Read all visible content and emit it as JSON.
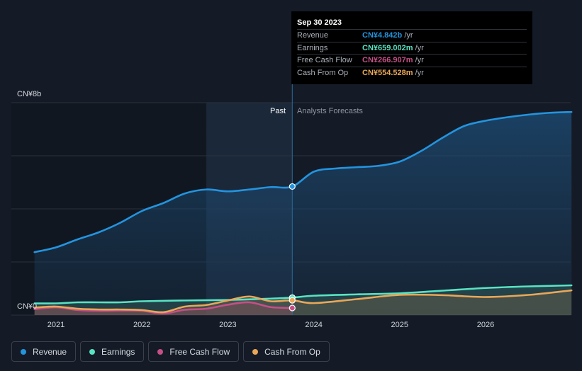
{
  "chart_data": {
    "type": "line",
    "title": "",
    "y_unit_labels": {
      "top": "CN¥8b",
      "bottom": "CN¥0"
    },
    "ylim": [
      0,
      8
    ],
    "xlim": [
      2020.6,
      2027.0
    ],
    "x_ticks": [
      {
        "label": "2021",
        "value": 2021
      },
      {
        "label": "2022",
        "value": 2022
      },
      {
        "label": "2023",
        "value": 2023
      },
      {
        "label": "2024",
        "value": 2024
      },
      {
        "label": "2025",
        "value": 2025
      },
      {
        "label": "2026",
        "value": 2026
      }
    ],
    "past_label": "Past",
    "forecast_label": "Analysts Forecasts",
    "divider_x": 2023.75,
    "shade_start_x": 2022.75,
    "series": [
      {
        "name": "Revenue",
        "color": "#2394df",
        "points": [
          [
            2020.75,
            2.37
          ],
          [
            2021.0,
            2.55
          ],
          [
            2021.25,
            2.85
          ],
          [
            2021.5,
            3.12
          ],
          [
            2021.75,
            3.48
          ],
          [
            2022.0,
            3.92
          ],
          [
            2022.25,
            4.22
          ],
          [
            2022.5,
            4.58
          ],
          [
            2022.75,
            4.73
          ],
          [
            2023.0,
            4.66
          ],
          [
            2023.25,
            4.73
          ],
          [
            2023.5,
            4.82
          ],
          [
            2023.75,
            4.842
          ],
          [
            2024.0,
            5.4
          ],
          [
            2024.25,
            5.52
          ],
          [
            2024.5,
            5.57
          ],
          [
            2024.75,
            5.62
          ],
          [
            2025.0,
            5.78
          ],
          [
            2025.25,
            6.18
          ],
          [
            2025.5,
            6.68
          ],
          [
            2025.75,
            7.12
          ],
          [
            2026.0,
            7.32
          ],
          [
            2026.25,
            7.45
          ],
          [
            2026.5,
            7.55
          ],
          [
            2026.75,
            7.62
          ],
          [
            2027.0,
            7.65
          ]
        ]
      },
      {
        "name": "Earnings",
        "color": "#58e3c2",
        "points": [
          [
            2020.75,
            0.44
          ],
          [
            2021.0,
            0.44
          ],
          [
            2021.25,
            0.48
          ],
          [
            2021.5,
            0.48
          ],
          [
            2021.75,
            0.48
          ],
          [
            2022.0,
            0.52
          ],
          [
            2022.5,
            0.55
          ],
          [
            2023.0,
            0.57
          ],
          [
            2023.5,
            0.62
          ],
          [
            2023.75,
            0.659
          ],
          [
            2024.0,
            0.73
          ],
          [
            2024.5,
            0.78
          ],
          [
            2025.0,
            0.82
          ],
          [
            2025.5,
            0.92
          ],
          [
            2026.0,
            1.02
          ],
          [
            2026.5,
            1.08
          ],
          [
            2027.0,
            1.12
          ]
        ]
      },
      {
        "name": "Free Cash Flow",
        "color": "#c64f87",
        "points": [
          [
            2020.75,
            0.22
          ],
          [
            2021.0,
            0.29
          ],
          [
            2021.25,
            0.19
          ],
          [
            2021.5,
            0.16
          ],
          [
            2021.75,
            0.17
          ],
          [
            2022.0,
            0.16
          ],
          [
            2022.25,
            0.06
          ],
          [
            2022.5,
            0.2
          ],
          [
            2022.75,
            0.24
          ],
          [
            2023.0,
            0.39
          ],
          [
            2023.25,
            0.48
          ],
          [
            2023.5,
            0.3
          ],
          [
            2023.75,
            0.267
          ]
        ]
      },
      {
        "name": "Cash From Op",
        "color": "#e9a758",
        "points": [
          [
            2020.75,
            0.28
          ],
          [
            2021.0,
            0.32
          ],
          [
            2021.25,
            0.24
          ],
          [
            2021.5,
            0.21
          ],
          [
            2021.75,
            0.21
          ],
          [
            2022.0,
            0.19
          ],
          [
            2022.25,
            0.11
          ],
          [
            2022.5,
            0.32
          ],
          [
            2022.75,
            0.38
          ],
          [
            2023.0,
            0.55
          ],
          [
            2023.25,
            0.7
          ],
          [
            2023.5,
            0.52
          ],
          [
            2023.75,
            0.555
          ],
          [
            2024.0,
            0.45
          ],
          [
            2024.5,
            0.6
          ],
          [
            2025.0,
            0.76
          ],
          [
            2025.5,
            0.75
          ],
          [
            2026.0,
            0.68
          ],
          [
            2026.5,
            0.76
          ],
          [
            2027.0,
            0.93
          ]
        ]
      }
    ]
  },
  "tooltip": {
    "date": "Sep 30 2023",
    "rows": [
      {
        "label": "Revenue",
        "value": "CN¥4.842b",
        "unit": "/yr",
        "color": "#2394df"
      },
      {
        "label": "Earnings",
        "value": "CN¥659.002m",
        "unit": "/yr",
        "color": "#58e3c2"
      },
      {
        "label": "Free Cash Flow",
        "value": "CN¥266.907m",
        "unit": "/yr",
        "color": "#c64f87"
      },
      {
        "label": "Cash From Op",
        "value": "CN¥554.528m",
        "unit": "/yr",
        "color": "#e9a758"
      }
    ]
  },
  "legend": [
    {
      "label": "Revenue",
      "color": "#2394df"
    },
    {
      "label": "Earnings",
      "color": "#58e3c2"
    },
    {
      "label": "Free Cash Flow",
      "color": "#c64f87"
    },
    {
      "label": "Cash From Op",
      "color": "#e9a758"
    }
  ]
}
